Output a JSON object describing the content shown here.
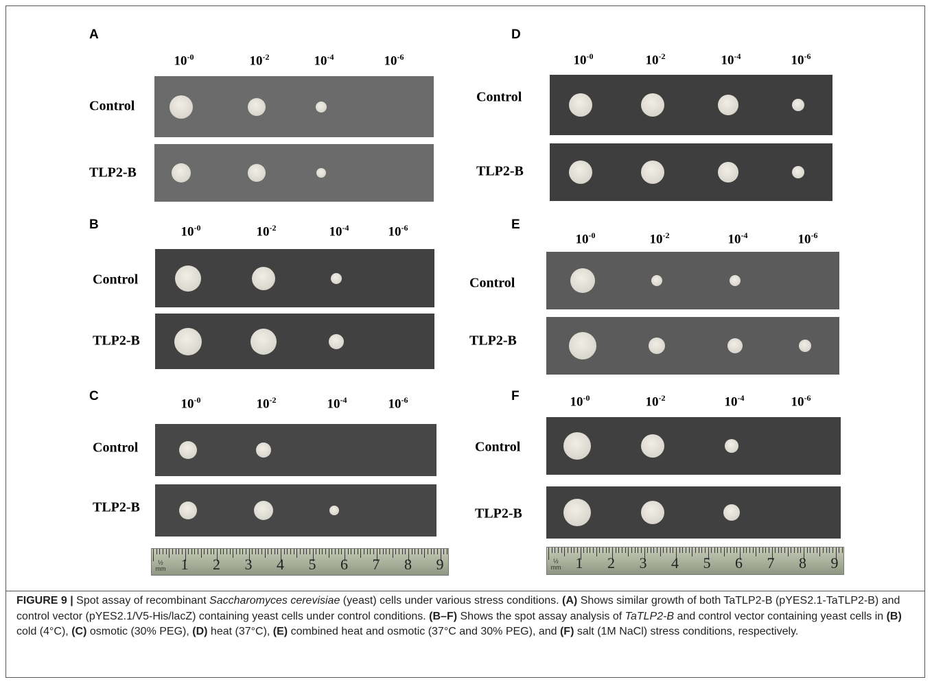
{
  "panels": [
    {
      "letter": "A",
      "dilutions": [
        {
          "base": "10",
          "exp": "-0"
        },
        {
          "base": "10",
          "exp": "-2"
        },
        {
          "base": "10",
          "exp": "-4"
        },
        {
          "base": "10",
          "exp": "-6"
        }
      ],
      "rows": [
        "Control",
        "TLP2-B"
      ]
    },
    {
      "letter": "B",
      "dilutions": [
        {
          "base": "10",
          "exp": "-0"
        },
        {
          "base": "10",
          "exp": "-2"
        },
        {
          "base": "10",
          "exp": "-4"
        },
        {
          "base": "10",
          "exp": "-6"
        }
      ],
      "rows": [
        "Control",
        "TLP2-B"
      ]
    },
    {
      "letter": "C",
      "dilutions": [
        {
          "base": "10",
          "exp": "-0"
        },
        {
          "base": "10",
          "exp": "-2"
        },
        {
          "base": "10",
          "exp": "-4"
        },
        {
          "base": "10",
          "exp": "-6"
        }
      ],
      "rows": [
        "Control",
        "TLP2-B"
      ]
    },
    {
      "letter": "D",
      "dilutions": [
        {
          "base": "10",
          "exp": "-0"
        },
        {
          "base": "10",
          "exp": "-2"
        },
        {
          "base": "10",
          "exp": "-4"
        },
        {
          "base": "10",
          "exp": "-6"
        }
      ],
      "rows": [
        "Control",
        "TLP2-B"
      ]
    },
    {
      "letter": "E",
      "dilutions": [
        {
          "base": "10",
          "exp": "-0"
        },
        {
          "base": "10",
          "exp": "-2"
        },
        {
          "base": "10",
          "exp": "-4"
        },
        {
          "base": "10",
          "exp": "-6"
        }
      ],
      "rows": [
        "Control",
        "TLP2-B"
      ]
    },
    {
      "letter": "F",
      "dilutions": [
        {
          "base": "10",
          "exp": "-0"
        },
        {
          "base": "10",
          "exp": "-2"
        },
        {
          "base": "10",
          "exp": "-4"
        },
        {
          "base": "10",
          "exp": "-6"
        }
      ],
      "rows": [
        "Control",
        "TLP2-B"
      ]
    }
  ],
  "rulers": [
    {
      "fraction": "½",
      "unit": "mm",
      "numbers": [
        "1",
        "2",
        "3",
        "4",
        "5",
        "6",
        "7",
        "8",
        "9"
      ]
    },
    {
      "fraction": "½",
      "unit": "mm",
      "numbers": [
        "1",
        "2",
        "3",
        "4",
        "5",
        "6",
        "7",
        "8",
        "9"
      ]
    }
  ],
  "caption": {
    "runs": [
      {
        "text": "FIGURE 9 |",
        "style": "bold"
      },
      {
        "text": " Spot assay of recombinant ",
        "style": "normal"
      },
      {
        "text": "Saccharomyces cerevisiae",
        "style": "italic"
      },
      {
        "text": " (yeast) cells under various stress conditions. ",
        "style": "normal"
      },
      {
        "text": "(A)",
        "style": "bold"
      },
      {
        "text": " Shows similar growth of both TaTLP2-B (pYES2.1-TaTLP2-B) and control vector (pYES2.1/V5-His/lacZ) containing yeast cells under control conditions. ",
        "style": "normal"
      },
      {
        "text": "(B–F)",
        "style": "bold"
      },
      {
        "text": " Shows the spot assay analysis of ",
        "style": "normal"
      },
      {
        "text": "TaTLP2-B",
        "style": "italic"
      },
      {
        "text": " and control vector containing yeast cells in ",
        "style": "normal"
      },
      {
        "text": "(B)",
        "style": "bold"
      },
      {
        "text": " cold (4°C), ",
        "style": "normal"
      },
      {
        "text": "(C)",
        "style": "bold"
      },
      {
        "text": " osmotic (30% PEG), ",
        "style": "normal"
      },
      {
        "text": "(D)",
        "style": "bold"
      },
      {
        "text": " heat (37°C), ",
        "style": "normal"
      },
      {
        "text": "(E)",
        "style": "bold"
      },
      {
        "text": " combined heat and osmotic (37°C and 30% PEG), and ",
        "style": "normal"
      },
      {
        "text": "(F)",
        "style": "bold"
      },
      {
        "text": " salt (1M NaCl) stress conditions, respectively.",
        "style": "normal"
      }
    ]
  }
}
